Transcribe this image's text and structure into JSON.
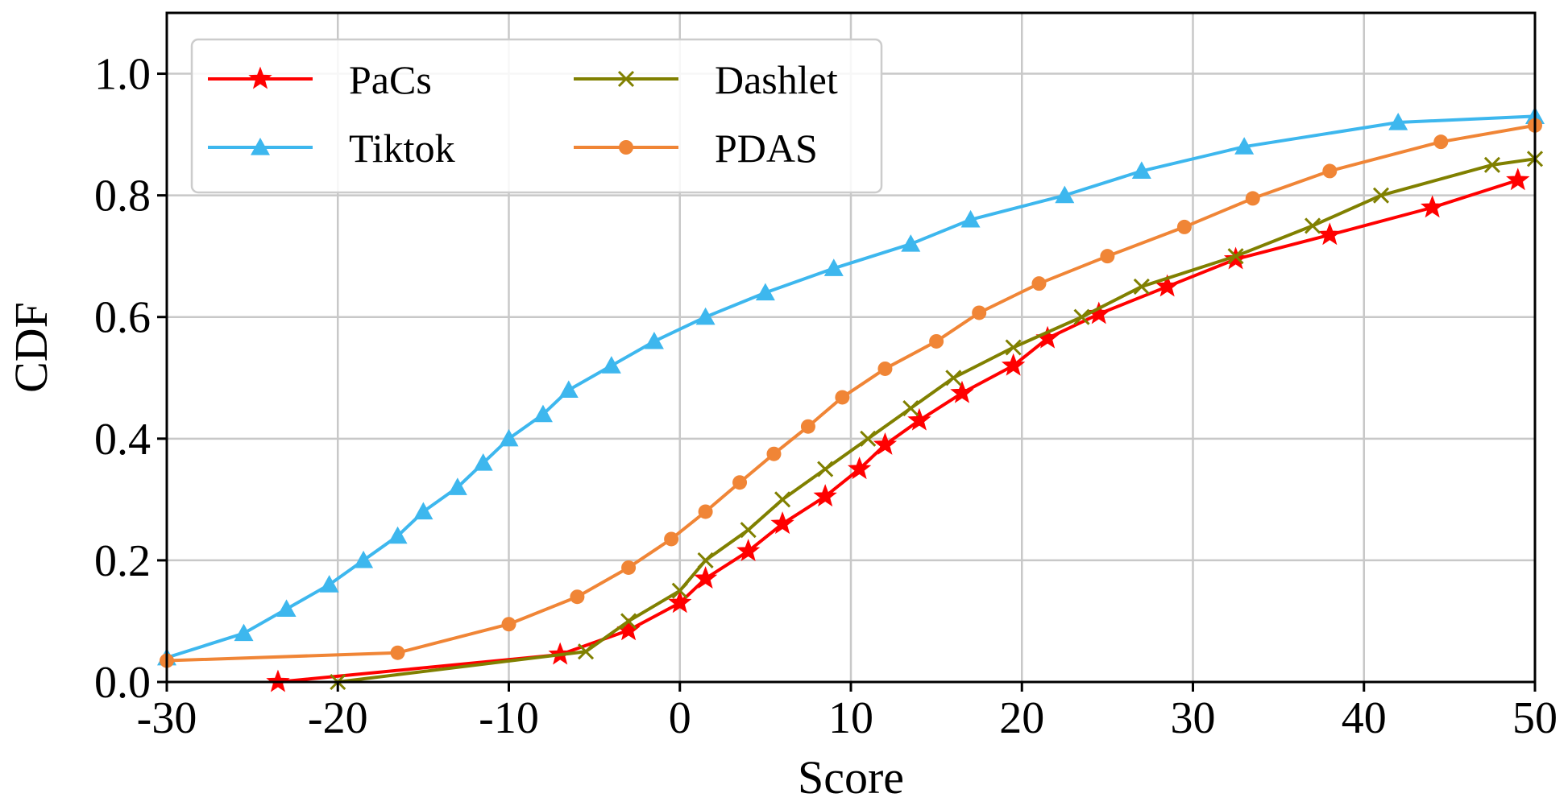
{
  "chart_data": {
    "type": "line",
    "title": "",
    "xlabel": "Score",
    "ylabel": "CDF",
    "xlim": [
      -30,
      50
    ],
    "ylim": [
      0.0,
      1.1
    ],
    "xticks": [
      -30,
      -20,
      -10,
      0,
      10,
      20,
      30,
      40,
      50
    ],
    "xtick_labels": [
      "-30",
      "-20",
      "-10",
      "0",
      "10",
      "20",
      "30",
      "40",
      "50"
    ],
    "yticks": [
      0.0,
      0.2,
      0.4,
      0.6,
      0.8,
      1.0
    ],
    "ytick_labels": [
      "0.0",
      "0.2",
      "0.4",
      "0.6",
      "0.8",
      "1.0"
    ],
    "grid": true,
    "legend_position": "top-left",
    "series": [
      {
        "name": "PaCs",
        "color": "#ff0000",
        "marker": "star",
        "x": [
          -23.5,
          -7,
          -3,
          0,
          1.5,
          4,
          6,
          8.5,
          10.5,
          12,
          14,
          16.5,
          19.5,
          21.5,
          24.5,
          28.5,
          32.5,
          38,
          44,
          49
        ],
        "y": [
          0.0,
          0.045,
          0.085,
          0.13,
          0.17,
          0.215,
          0.26,
          0.305,
          0.35,
          0.39,
          0.43,
          0.475,
          0.52,
          0.565,
          0.605,
          0.65,
          0.695,
          0.735,
          0.78,
          0.825
        ]
      },
      {
        "name": "Tiktok",
        "color": "#3db7ee",
        "marker": "triangle",
        "x": [
          -30,
          -25.5,
          -23,
          -20.5,
          -18.5,
          -16.5,
          -15,
          -13,
          -11.5,
          -10,
          -8,
          -6.5,
          -4,
          -1.5,
          1.5,
          5,
          9,
          13.5,
          17,
          22.5,
          27,
          33,
          42,
          50
        ],
        "y": [
          0.04,
          0.08,
          0.12,
          0.16,
          0.2,
          0.24,
          0.28,
          0.32,
          0.36,
          0.4,
          0.44,
          0.48,
          0.52,
          0.56,
          0.6,
          0.64,
          0.68,
          0.72,
          0.76,
          0.8,
          0.84,
          0.88,
          0.92,
          0.93
        ]
      },
      {
        "name": "Dashlet",
        "color": "#808000",
        "marker": "x",
        "x": [
          -20,
          -5.5,
          -3,
          0,
          1.5,
          4,
          6,
          8.5,
          11,
          13.5,
          16,
          19.5,
          23.5,
          27,
          32.5,
          37,
          41,
          47.5,
          50
        ],
        "y": [
          0.0,
          0.05,
          0.1,
          0.15,
          0.2,
          0.25,
          0.3,
          0.35,
          0.4,
          0.45,
          0.5,
          0.55,
          0.6,
          0.65,
          0.7,
          0.75,
          0.8,
          0.85,
          0.86
        ]
      },
      {
        "name": "PDAS",
        "color": "#f08536",
        "marker": "circle",
        "x": [
          -30,
          -16.5,
          -10,
          -6,
          -3,
          -0.5,
          1.5,
          3.5,
          5.5,
          7.5,
          9.5,
          12,
          15,
          17.5,
          21,
          25,
          29.5,
          33.5,
          38,
          44.5,
          50
        ],
        "y": [
          0.035,
          0.048,
          0.095,
          0.14,
          0.188,
          0.235,
          0.28,
          0.328,
          0.375,
          0.42,
          0.468,
          0.515,
          0.56,
          0.607,
          0.655,
          0.7,
          0.748,
          0.795,
          0.84,
          0.888,
          0.915
        ]
      }
    ]
  }
}
